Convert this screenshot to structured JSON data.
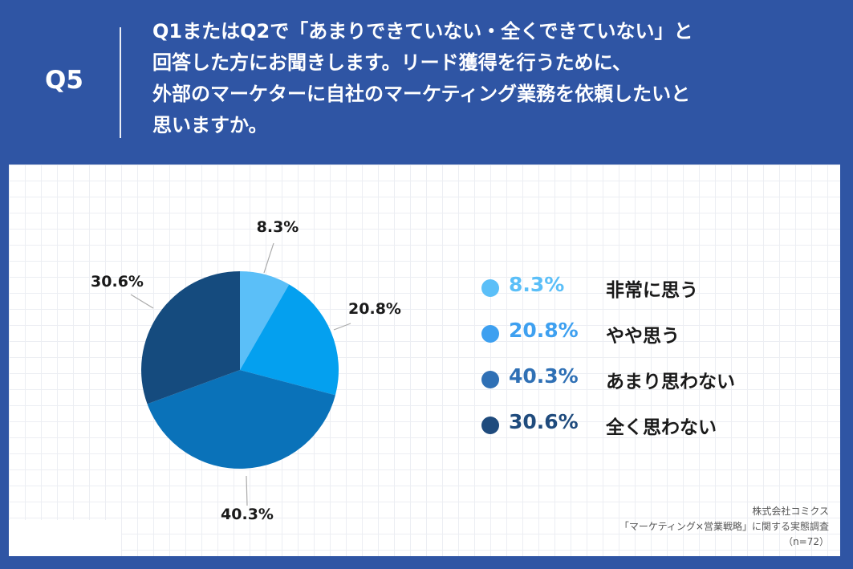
{
  "header": {
    "question_number": "Q5",
    "question_lines": [
      "Q1またはQ2で「あまりできていない・全くできていない」と",
      "回答した方にお聞きします。リード獲得を行うために、",
      "外部のマーケターに自社のマーケティング業務を依頼したいと",
      "思いますか。"
    ]
  },
  "chart_data": {
    "type": "pie",
    "slices": [
      {
        "label": "非常に思う",
        "value": 8.3,
        "value_label": "8.3%",
        "color": "#5bbff8"
      },
      {
        "label": "やや思う",
        "value": 20.8,
        "value_label": "20.8%",
        "color": "#04a0ef"
      },
      {
        "label": "あまり思わない",
        "value": 40.3,
        "value_label": "40.3%",
        "color": "#0a72b9"
      },
      {
        "label": "全く思わない",
        "value": 30.6,
        "value_label": "30.6%",
        "color": "#154b7e"
      }
    ],
    "legend_placement": "right"
  },
  "legend_colors": [
    "#5bbff8",
    "#3ea0f0",
    "#2f70b5",
    "#1f4b7d"
  ],
  "source": {
    "company": "株式会社コミクス",
    "survey": "「マーケティング×営業戦略」に関する実態調査",
    "sample": "（n=72）"
  }
}
